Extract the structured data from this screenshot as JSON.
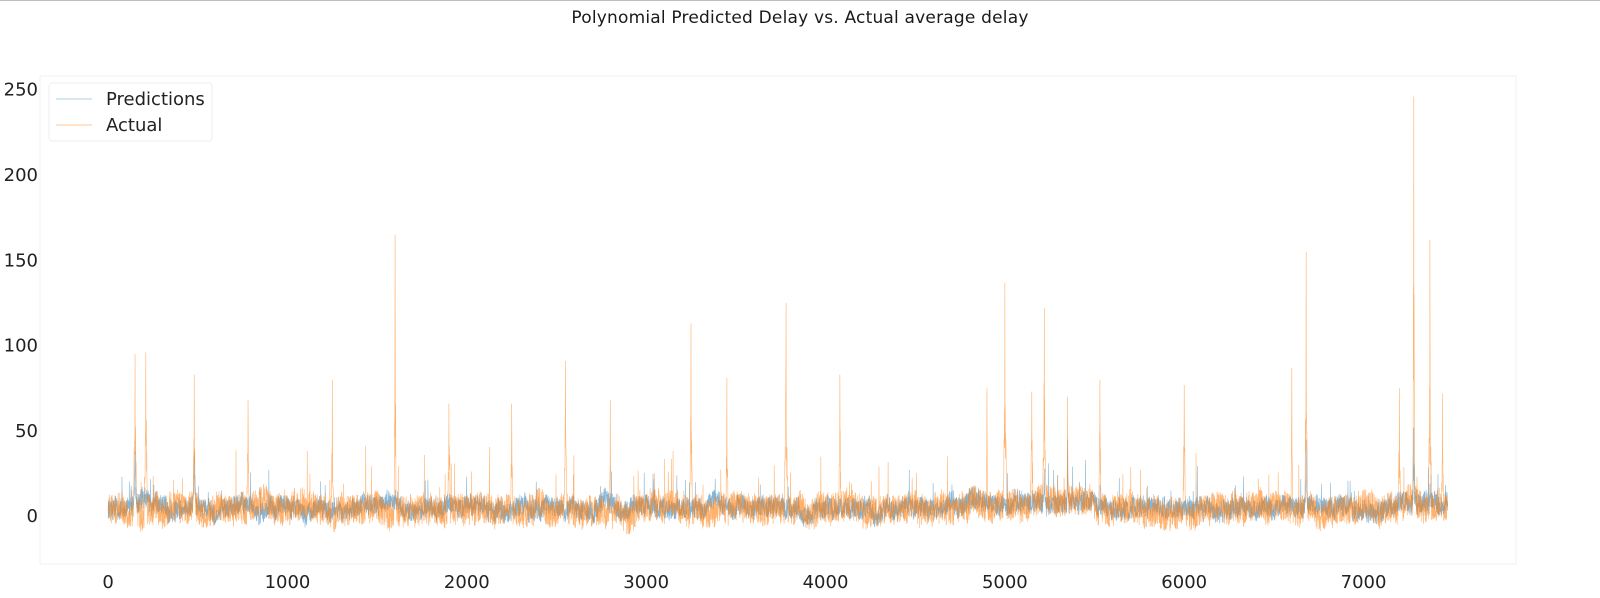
{
  "title": "Polynomial Predicted Delay vs. Actual average delay",
  "chart_data": {
    "type": "line",
    "title": "Polynomial Predicted Delay vs. Actual average delay",
    "xlabel": "",
    "ylabel": "",
    "xlim": [
      -380,
      7850
    ],
    "ylim": [
      -28,
      258
    ],
    "xticks": [
      0,
      1000,
      2000,
      3000,
      4000,
      5000,
      6000,
      7000
    ],
    "xtick_labels": [
      "0",
      "1000",
      "2000",
      "3000",
      "4000",
      "5000",
      "6000",
      "7000"
    ],
    "yticks": [
      0,
      50,
      100,
      150,
      200,
      250
    ],
    "ytick_labels": [
      "0",
      "50",
      "100",
      "150",
      "200",
      "250"
    ],
    "grid": false,
    "legend_position": "top-left",
    "n_points": 7470,
    "series": [
      {
        "name": "Predictions",
        "color": "#1f77b4",
        "description_profile": "noisy series mostly between -5 and 20, local bumps around the listed spike positions",
        "baseline": 5,
        "noise_amplitude": 6,
        "spikes": [
          [
            150,
            38
          ],
          [
            480,
            38
          ],
          [
            5350,
            45
          ],
          [
            6680,
            45
          ],
          [
            7280,
            52
          ],
          [
            5220,
            28
          ]
        ]
      },
      {
        "name": "Actual",
        "color": "#ff7f0e",
        "baseline": 4,
        "noise_amplitude": 9,
        "spikes": [
          [
            150,
            95
          ],
          [
            210,
            96
          ],
          [
            480,
            83
          ],
          [
            780,
            68
          ],
          [
            1250,
            80
          ],
          [
            1600,
            165
          ],
          [
            1900,
            66
          ],
          [
            2250,
            66
          ],
          [
            2550,
            91
          ],
          [
            2800,
            68
          ],
          [
            3250,
            113
          ],
          [
            3450,
            81
          ],
          [
            3780,
            125
          ],
          [
            4080,
            83
          ],
          [
            4900,
            75
          ],
          [
            5000,
            137
          ],
          [
            5150,
            73
          ],
          [
            5220,
            122
          ],
          [
            5350,
            70
          ],
          [
            5530,
            80
          ],
          [
            6000,
            77
          ],
          [
            6600,
            87
          ],
          [
            6680,
            155
          ],
          [
            7200,
            75
          ],
          [
            7280,
            246
          ],
          [
            7370,
            162
          ],
          [
            7440,
            72
          ]
        ]
      }
    ]
  }
}
